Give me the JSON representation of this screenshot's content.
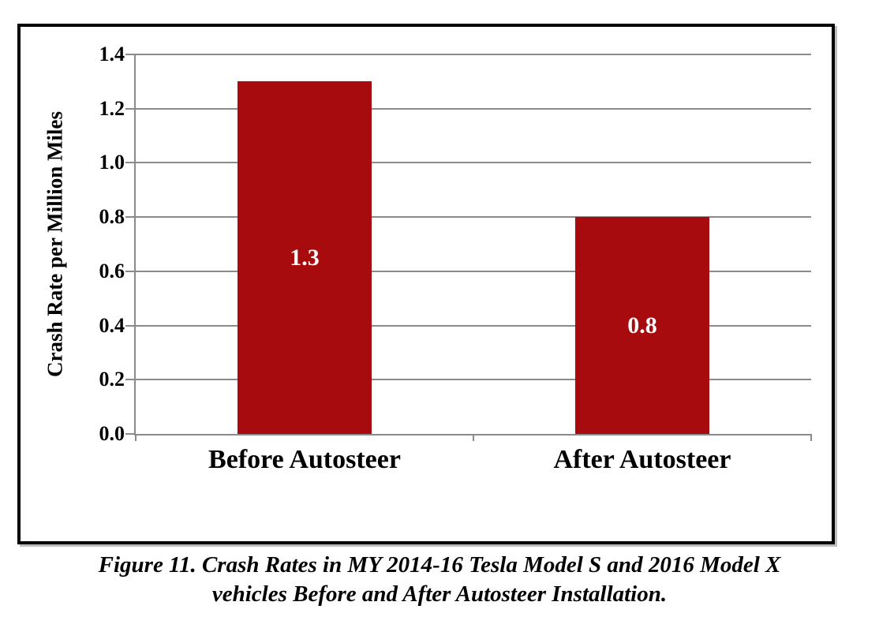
{
  "figure": {
    "caption_line1": "Figure 11. Crash Rates in MY 2014-16 Tesla Model S and 2016 Model X",
    "caption_line2": "vehicles Before and After Autosteer Installation."
  },
  "chart_data": {
    "type": "bar",
    "categories": [
      "Before Autosteer",
      "After Autosteer"
    ],
    "values": [
      1.3,
      0.8
    ],
    "bar_labels": [
      "1.3",
      "0.8"
    ],
    "title": "",
    "xlabel": "",
    "ylabel": "Crash Rate per Million Miles",
    "ylim": [
      0,
      1.4
    ],
    "yticks": [
      0,
      0.2,
      0.4,
      0.6,
      0.8,
      1.0,
      1.2,
      1.4
    ],
    "ytick_labels": [
      "0.0",
      "0.2",
      "0.4",
      "0.6",
      "0.8",
      "1.0",
      "1.2",
      "1.4"
    ],
    "grid": true,
    "legend": false,
    "colors": {
      "bar": "#A80B0D",
      "grid": "#8A8A8A",
      "axis": "#8A8A8A",
      "bar_label_text": "#FFFFFF",
      "text": "#000000",
      "border": "#000000"
    }
  }
}
